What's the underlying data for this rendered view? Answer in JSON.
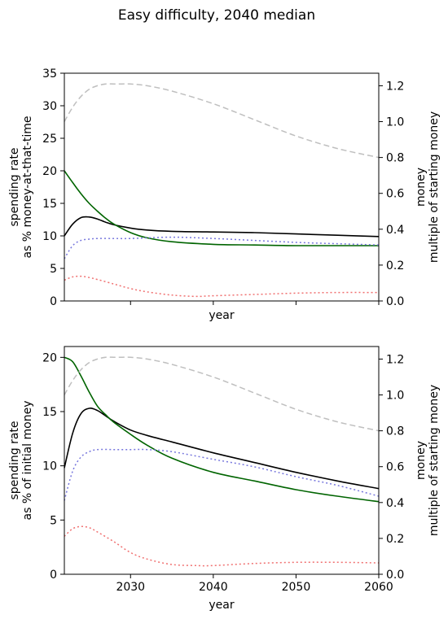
{
  "figure": {
    "title": "Easy difficulty, 2040 median"
  },
  "chart_data": [
    {
      "type": "line",
      "xlabel": "year",
      "ylabel_lines": [
        "spending rate",
        "as % money-at-that-time"
      ],
      "y2label_lines": [
        "money",
        "multiple of starting money"
      ],
      "xlim": [
        2022,
        2060
      ],
      "ylim": [
        0,
        35
      ],
      "y2lim": [
        0,
        1.27
      ],
      "xticks": [
        2030,
        2040,
        2050,
        2060
      ],
      "xtick_labels_visible": false,
      "yticks": [
        0,
        5,
        10,
        15,
        20,
        25,
        30,
        35
      ],
      "y2ticks": [
        0.0,
        0.2,
        0.4,
        0.6,
        0.8,
        1.0,
        1.2
      ],
      "grid": false,
      "series": [
        {
          "axis": "left",
          "color": "#000000",
          "style": "solid",
          "x": [
            2022,
            2023,
            2024,
            2025,
            2026,
            2027,
            2028,
            2030,
            2032,
            2035,
            2040,
            2045,
            2050,
            2055,
            2060
          ],
          "y": [
            10.0,
            11.8,
            12.8,
            12.9,
            12.6,
            12.1,
            11.7,
            11.2,
            10.9,
            10.7,
            10.6,
            10.5,
            10.3,
            10.1,
            9.9
          ]
        },
        {
          "axis": "left",
          "color": "#006400",
          "style": "solid",
          "x": [
            2022,
            2023,
            2024,
            2025,
            2026,
            2027,
            2028,
            2030,
            2032,
            2035,
            2040,
            2045,
            2050,
            2055,
            2060
          ],
          "y": [
            20.0,
            18.2,
            16.5,
            15.0,
            13.8,
            12.7,
            11.8,
            10.5,
            9.7,
            9.1,
            8.7,
            8.6,
            8.5,
            8.5,
            8.5
          ]
        },
        {
          "axis": "left",
          "color": "#7777dd",
          "style": "dotted",
          "x": [
            2022,
            2023,
            2024,
            2025,
            2026,
            2028,
            2030,
            2035,
            2040,
            2045,
            2050,
            2055,
            2060
          ],
          "y": [
            6.5,
            8.5,
            9.3,
            9.5,
            9.6,
            9.6,
            9.6,
            9.8,
            9.6,
            9.3,
            9.0,
            8.8,
            8.6
          ]
        },
        {
          "axis": "left",
          "color": "#f07070",
          "style": "dotted",
          "x": [
            2022,
            2023,
            2024,
            2025,
            2026,
            2028,
            2030,
            2032,
            2035,
            2038,
            2040,
            2045,
            2050,
            2055,
            2060
          ],
          "y": [
            3.2,
            3.7,
            3.8,
            3.6,
            3.3,
            2.6,
            1.9,
            1.4,
            0.9,
            0.7,
            0.8,
            1.0,
            1.2,
            1.3,
            1.3
          ]
        },
        {
          "axis": "right",
          "color": "#bfbfbf",
          "style": "dashed",
          "x": [
            2022,
            2023,
            2024,
            2025,
            2026,
            2027,
            2028,
            2029,
            2030,
            2032,
            2035,
            2040,
            2045,
            2050,
            2055,
            2060
          ],
          "y": [
            1.0,
            1.08,
            1.14,
            1.18,
            1.2,
            1.21,
            1.21,
            1.21,
            1.21,
            1.2,
            1.17,
            1.1,
            1.01,
            0.92,
            0.85,
            0.8
          ]
        }
      ]
    },
    {
      "type": "line",
      "xlabel": "year",
      "ylabel_lines": [
        "spending rate",
        "as % of initial money"
      ],
      "y2label_lines": [
        "money",
        "multiple of starting money"
      ],
      "xlim": [
        2022,
        2060
      ],
      "ylim": [
        0,
        21
      ],
      "y2lim": [
        0,
        1.27
      ],
      "xticks": [
        2030,
        2040,
        2050,
        2060
      ],
      "xtick_labels_visible": true,
      "xtick_labels": [
        "2030",
        "2040",
        "2050",
        "2060"
      ],
      "yticks": [
        0,
        5,
        10,
        15,
        20
      ],
      "y2ticks": [
        0.0,
        0.2,
        0.4,
        0.6,
        0.8,
        1.0,
        1.2
      ],
      "grid": false,
      "series": [
        {
          "axis": "left",
          "color": "#000000",
          "style": "solid",
          "x": [
            2022,
            2023,
            2024,
            2025,
            2026,
            2027,
            2028,
            2030,
            2032,
            2035,
            2040,
            2045,
            2050,
            2055,
            2060
          ],
          "y": [
            9.8,
            13.0,
            14.8,
            15.3,
            15.1,
            14.6,
            14.1,
            13.3,
            12.8,
            12.2,
            11.2,
            10.3,
            9.4,
            8.6,
            7.9
          ]
        },
        {
          "axis": "left",
          "color": "#006400",
          "style": "solid",
          "x": [
            2022,
            2023,
            2024,
            2025,
            2026,
            2027,
            2028,
            2030,
            2032,
            2035,
            2040,
            2045,
            2050,
            2055,
            2060
          ],
          "y": [
            20.0,
            19.6,
            18.3,
            16.8,
            15.5,
            14.7,
            14.0,
            12.9,
            11.9,
            10.7,
            9.4,
            8.6,
            7.8,
            7.2,
            6.7
          ]
        },
        {
          "axis": "left",
          "color": "#7777dd",
          "style": "dotted",
          "x": [
            2022,
            2023,
            2024,
            2025,
            2026,
            2028,
            2030,
            2032,
            2035,
            2040,
            2045,
            2050,
            2055,
            2060
          ],
          "y": [
            6.8,
            9.5,
            10.8,
            11.3,
            11.5,
            11.5,
            11.5,
            11.5,
            11.3,
            10.6,
            9.9,
            9.0,
            8.2,
            7.2
          ]
        },
        {
          "axis": "left",
          "color": "#f07070",
          "style": "dotted",
          "x": [
            2022,
            2023,
            2024,
            2025,
            2026,
            2028,
            2030,
            2032,
            2035,
            2038,
            2040,
            2045,
            2050,
            2055,
            2060
          ],
          "y": [
            3.5,
            4.2,
            4.4,
            4.3,
            3.9,
            3.0,
            2.0,
            1.4,
            0.9,
            0.8,
            0.8,
            1.0,
            1.1,
            1.1,
            1.05
          ]
        },
        {
          "axis": "right",
          "color": "#bfbfbf",
          "style": "dashed",
          "x": [
            2022,
            2023,
            2024,
            2025,
            2026,
            2027,
            2028,
            2029,
            2030,
            2032,
            2035,
            2040,
            2045,
            2050,
            2055,
            2060
          ],
          "y": [
            1.0,
            1.08,
            1.14,
            1.18,
            1.2,
            1.21,
            1.21,
            1.21,
            1.21,
            1.2,
            1.17,
            1.1,
            1.01,
            0.92,
            0.85,
            0.8
          ]
        }
      ]
    }
  ]
}
